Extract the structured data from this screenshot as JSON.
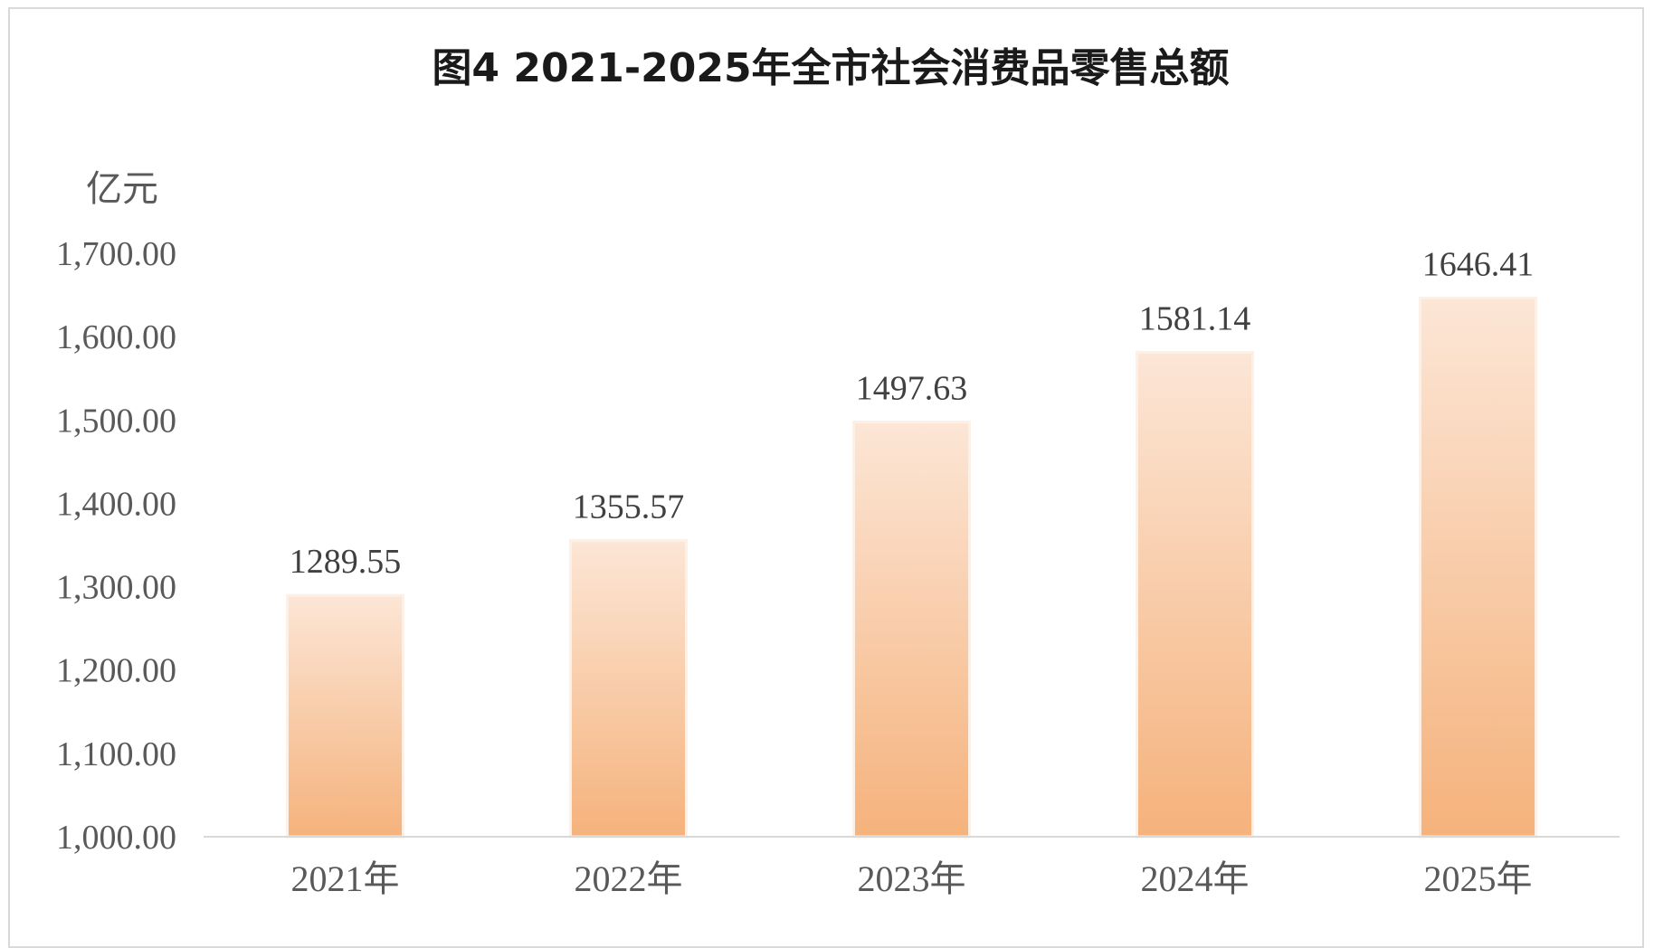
{
  "chart_data": {
    "type": "bar",
    "title": "图4 2021-2025年全市社会消费品零售总额",
    "ylabel": "亿元",
    "xlabel": "",
    "categories": [
      "2021年",
      "2022年",
      "2023年",
      "2024年",
      "2025年"
    ],
    "values": [
      1289.55,
      1355.57,
      1497.63,
      1581.14,
      1646.41
    ],
    "data_labels": [
      "1289.55",
      "1355.57",
      "1497.63",
      "1581.14",
      "1646.41"
    ],
    "ylim": [
      1000,
      1700
    ],
    "yticks": [
      1000,
      1100,
      1200,
      1300,
      1400,
      1500,
      1600,
      1700
    ],
    "ytick_labels": [
      "1,000.00",
      "1,100.00",
      "1,200.00",
      "1,300.00",
      "1,400.00",
      "1,500.00",
      "1,600.00",
      "1,700.00"
    ],
    "grid": false,
    "legend": "none",
    "colors": {
      "bar_top": "#fce6d6",
      "bar_bottom": "#f5b27c",
      "bar_edge": "#fdf0e6",
      "axis": "#d9d9d9"
    }
  }
}
